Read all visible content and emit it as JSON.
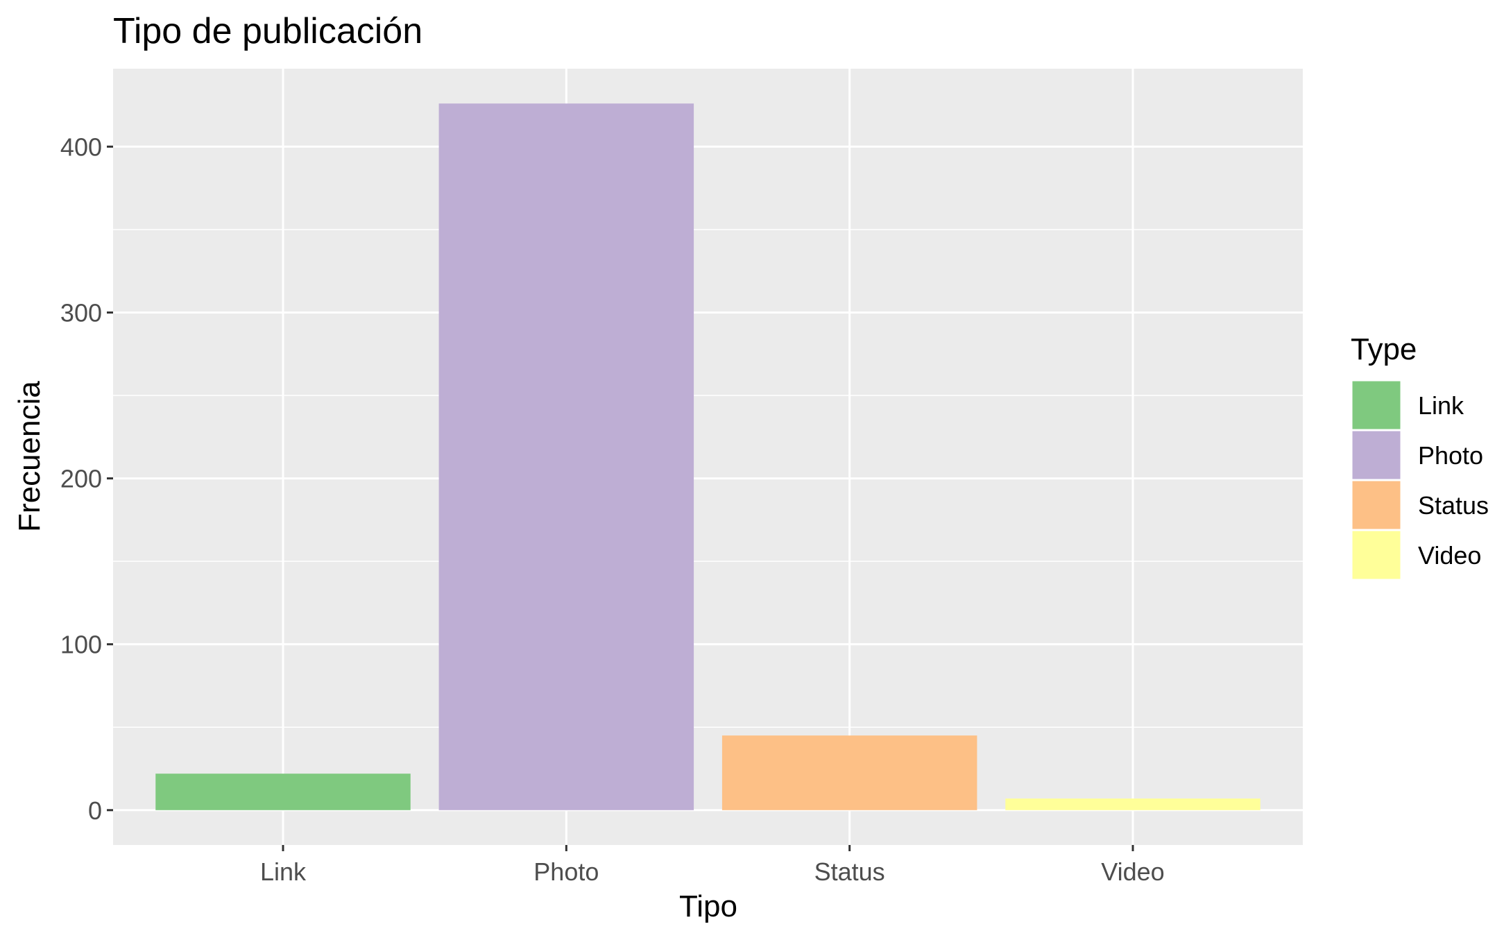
{
  "chart_data": {
    "type": "bar",
    "title": "Tipo de publicación",
    "xlabel": "Tipo",
    "ylabel": "Frecuencia",
    "categories": [
      "Link",
      "Photo",
      "Status",
      "Video"
    ],
    "values": [
      22,
      426,
      45,
      7
    ],
    "colors": [
      "#7FC97F",
      "#BEAED4",
      "#FDC086",
      "#FFFF99"
    ],
    "ylim": [
      -21,
      447
    ],
    "yticks": [
      0,
      100,
      200,
      300,
      400
    ],
    "grid": true,
    "legend": {
      "title": "Type",
      "position": "right",
      "entries": [
        "Link",
        "Photo",
        "Status",
        "Video"
      ]
    }
  },
  "theme": {
    "panel_background": "#EBEBEB",
    "grid_color": "#FFFFFF",
    "axis_text_color": "#4D4D4D",
    "text_color": "#000000"
  }
}
